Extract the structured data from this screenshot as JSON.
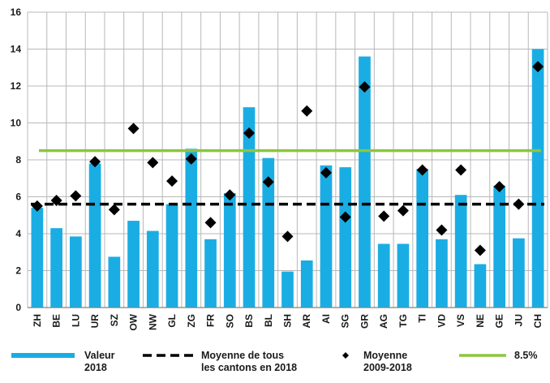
{
  "chart_data": {
    "type": "bar",
    "categories": [
      "ZH",
      "BE",
      "LU",
      "UR",
      "SZ",
      "OW",
      "NW",
      "GL",
      "ZG",
      "FR",
      "SO",
      "BS",
      "BL",
      "SH",
      "AR",
      "AI",
      "SG",
      "GR",
      "AG",
      "TG",
      "TI",
      "VD",
      "VS",
      "NE",
      "GE",
      "JU",
      "CH"
    ],
    "series": [
      {
        "name": "Valeur 2018",
        "type": "bar",
        "color": "#1aade4",
        "values": [
          5.4,
          4.3,
          3.85,
          7.8,
          2.75,
          4.7,
          4.15,
          5.6,
          8.6,
          3.7,
          6.2,
          10.85,
          8.1,
          1.95,
          2.55,
          7.7,
          7.6,
          13.6,
          3.45,
          3.45,
          7.5,
          3.7,
          6.1,
          2.35,
          6.6,
          3.75,
          14.0
        ]
      },
      {
        "name": "Moyenne 2009-2018",
        "type": "marker",
        "marker": "diamond",
        "color": "#000000",
        "values": [
          5.5,
          5.8,
          6.05,
          7.9,
          5.3,
          9.7,
          7.85,
          6.85,
          8.05,
          4.6,
          6.1,
          9.45,
          6.8,
          3.85,
          10.65,
          7.3,
          4.9,
          11.95,
          4.95,
          5.25,
          7.45,
          4.2,
          7.45,
          3.1,
          6.55,
          5.6,
          13.05
        ]
      }
    ],
    "reference_lines": [
      {
        "name": "Moyenne de tous les cantons en 2018",
        "value": 5.6,
        "style": "dashed",
        "color": "#000000"
      },
      {
        "name": "8.5%",
        "value": 8.5,
        "style": "solid",
        "color": "#8cc63f"
      }
    ],
    "ylim": [
      0,
      16
    ],
    "yticks": [
      "0",
      "2",
      "4",
      "6",
      "8",
      "10",
      "12",
      "14",
      "16"
    ],
    "grid": true,
    "legend": {
      "placement": "bottom",
      "items": [
        {
          "kind": "bar",
          "color": "#1aade4",
          "lines": [
            "Valeur",
            "2018"
          ]
        },
        {
          "kind": "dashed",
          "color": "#000000",
          "lines": [
            "Moyenne de tous",
            "les cantons en 2018"
          ]
        },
        {
          "kind": "diamond",
          "color": "#000000",
          "lines": [
            "Moyenne",
            "2009-2018"
          ]
        },
        {
          "kind": "line",
          "color": "#8cc63f",
          "lines": [
            "8.5%"
          ]
        }
      ]
    },
    "title": "",
    "xlabel": "",
    "ylabel": ""
  }
}
